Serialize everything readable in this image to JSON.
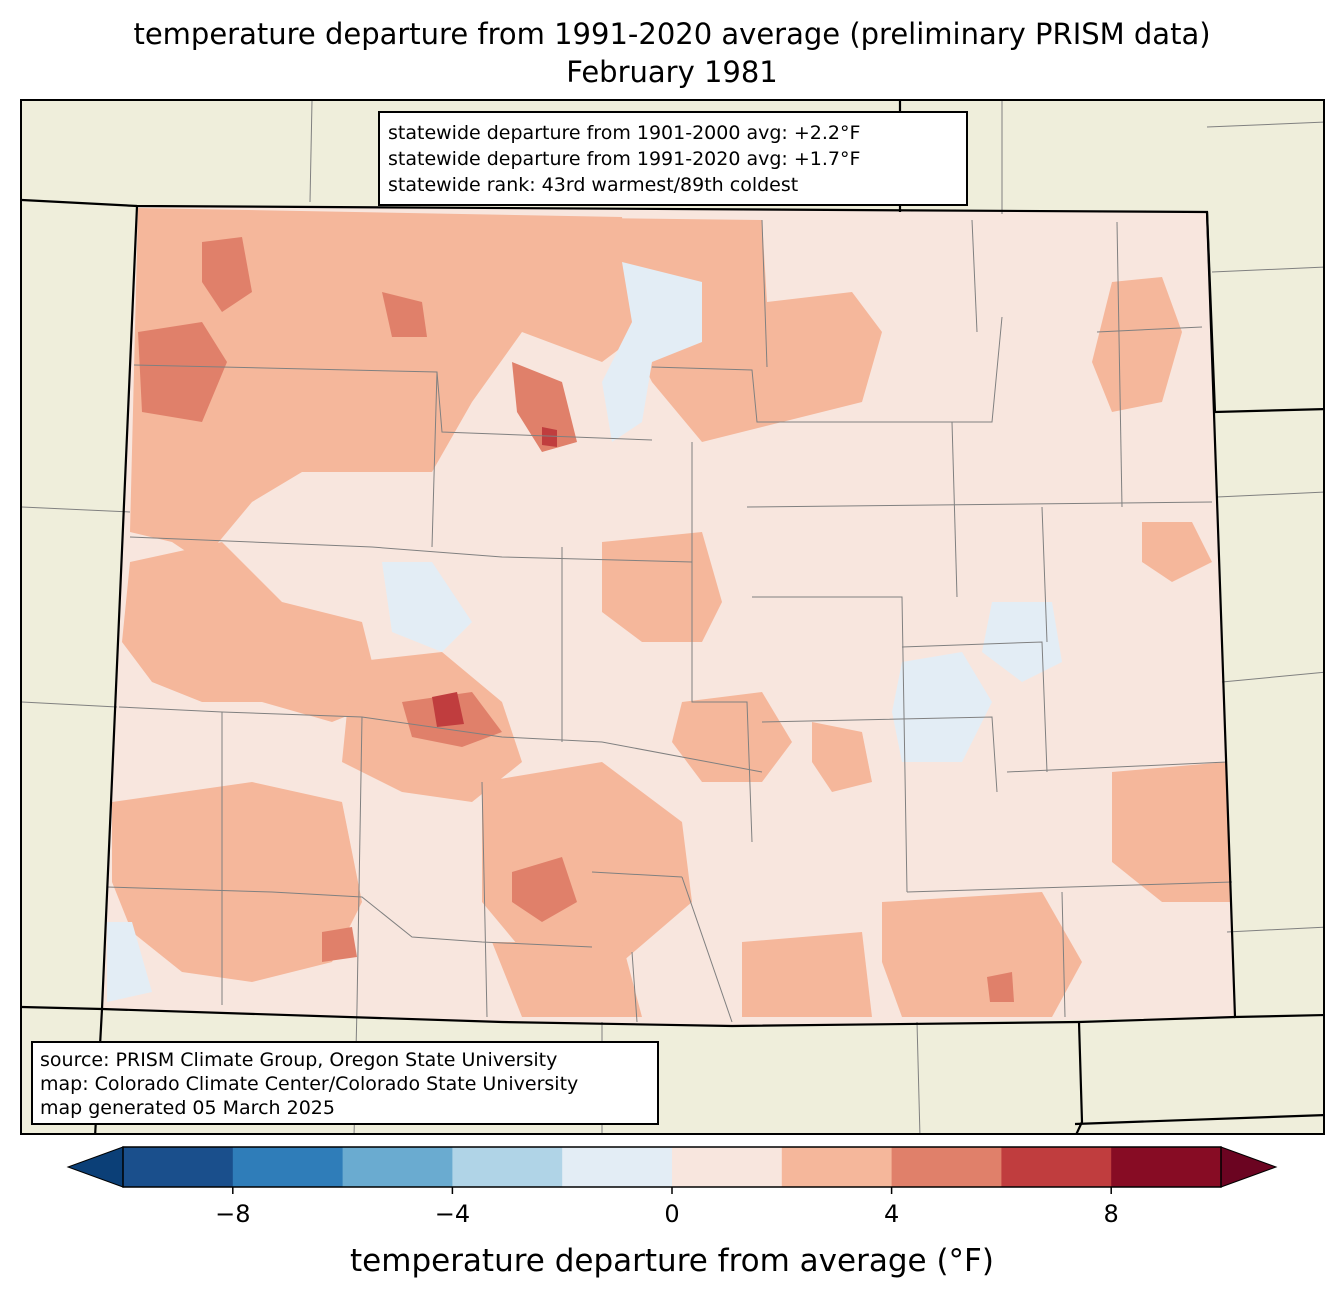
{
  "title": {
    "line1": "temperature departure from 1991-2020 average (preliminary PRISM data)",
    "line2": "February 1981"
  },
  "stats": {
    "line1": "statewide departure from 1901-2000 avg: +2.2°F",
    "line2": "statewide departure from 1991-2020 avg: +1.7°F",
    "line3": "statewide rank: 43rd warmest/89th coldest"
  },
  "source": {
    "line1": "source: PRISM Climate Group, Oregon State University",
    "line2": "map: Colorado Climate Center/Colorado State University",
    "line3": "map generated 05 March 2025"
  },
  "colorbar": {
    "label": "temperature departure from average (°F)",
    "min": -10,
    "max": 10,
    "step": 2,
    "ticks": [
      "−8",
      "−4",
      "0",
      "4",
      "8"
    ],
    "tick_values": [
      -8,
      -4,
      0,
      4,
      8
    ],
    "colors": [
      "#0b3f77",
      "#1a4f8c",
      "#2f7db9",
      "#6aabd0",
      "#b0d4e7",
      "#e3edf5",
      "#f8e6de",
      "#f5b79b",
      "#e0806a",
      "#c03d3e",
      "#870c24",
      "#6b0421"
    ]
  },
  "map": {
    "background_color": "#efeedb",
    "dominant_departure_band": "0 to 2",
    "warm_band_color": "#f5b79b",
    "warmer_band_color": "#e0806a",
    "warmest_band_color": "#c03d3e",
    "cool_band_color": "#e3edf5"
  }
}
